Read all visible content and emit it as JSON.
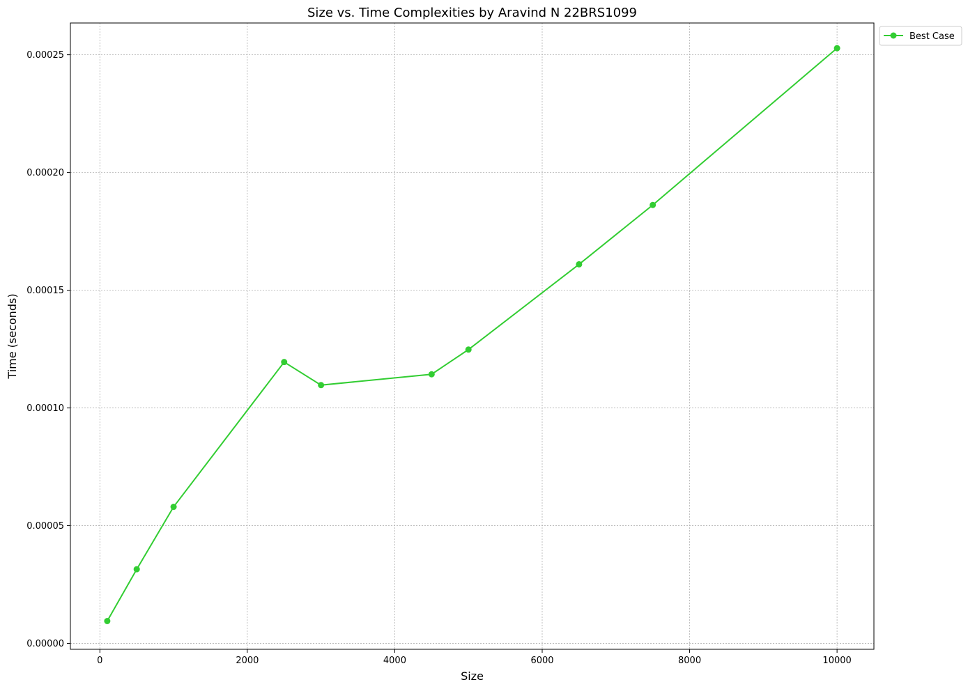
{
  "chart_data": {
    "type": "line",
    "title": "Size vs. Time Complexities by Aravind N 22BRS1099",
    "xlabel": "Size",
    "ylabel": "Time (seconds)",
    "xlim": [
      -400,
      10500
    ],
    "ylim": [
      -2.5e-06,
      0.0002635
    ],
    "xticks": [
      0,
      2000,
      4000,
      6000,
      8000,
      10000
    ],
    "xtick_labels": [
      "0",
      "2000",
      "4000",
      "6000",
      "8000",
      "10000"
    ],
    "yticks": [
      0,
      5e-05,
      0.0001,
      0.00015,
      0.0002,
      0.00025
    ],
    "ytick_labels": [
      "0.00000",
      "0.00005",
      "0.00010",
      "0.00015",
      "0.00020",
      "0.00025"
    ],
    "grid": true,
    "legend_position": "outside top-right",
    "series": [
      {
        "name": "Best Case",
        "color": "#32cd32",
        "marker": "circle",
        "x": [
          100,
          500,
          1000,
          2500,
          3000,
          4500,
          5000,
          6500,
          7500,
          10000
        ],
        "y": [
          9.5e-06,
          3.15e-05,
          5.8e-05,
          0.0001195,
          0.0001097,
          0.0001143,
          0.0001248,
          0.000161,
          0.0001862,
          0.0002528
        ]
      }
    ]
  }
}
